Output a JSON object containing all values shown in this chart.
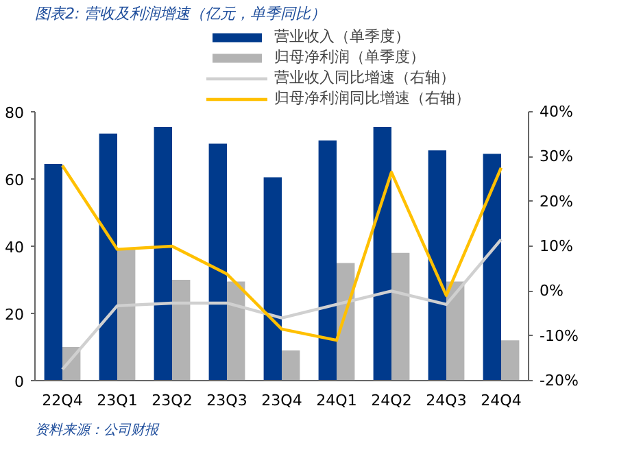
{
  "chart_data": {
    "type": "bar",
    "title": "图表2: 营收及利润增速（亿元，单季同比）",
    "categories": [
      "22Q4",
      "23Q1",
      "23Q2",
      "23Q3",
      "23Q4",
      "24Q1",
      "24Q2",
      "24Q3",
      "24Q4"
    ],
    "series": [
      {
        "name": "营业收入（单季度）",
        "color": "#003a8c",
        "values": [
          64.5,
          73.5,
          75.5,
          70.5,
          60.5,
          71.5,
          75.5,
          68.5,
          67.5
        ]
      },
      {
        "name": "归母净利润（单季度）",
        "color": "#b3b3b3",
        "values": [
          10,
          39,
          30,
          29.5,
          9,
          35,
          38,
          29.5,
          12
        ]
      },
      {
        "name": "营业收入同比增速（右轴）",
        "type": "line",
        "axis": "y2",
        "color": "#d0d0d0",
        "values": [
          -17.5,
          -3.3,
          -2.7,
          -2.7,
          -6,
          -3,
          0,
          -3,
          11.5
        ]
      },
      {
        "name": "归母净利润同比增速（右轴）",
        "type": "line",
        "axis": "y2",
        "color": "#ffc000",
        "values": [
          28,
          9.3,
          10,
          3.8,
          -8.5,
          -11,
          26.5,
          -1,
          27.5
        ]
      }
    ],
    "ylim": [
      0,
      80
    ],
    "yticks": [
      0,
      20,
      40,
      60,
      80
    ],
    "y2lim": [
      -20,
      40
    ],
    "y2ticks": [
      {
        "value": -20,
        "label": "-20%"
      },
      {
        "value": -10,
        "label": "-10%"
      },
      {
        "value": 0,
        "label": "0%"
      },
      {
        "value": 10,
        "label": "10%"
      },
      {
        "value": 20,
        "label": "20%"
      },
      {
        "value": 30,
        "label": "30%"
      },
      {
        "value": 40,
        "label": "40%"
      }
    ],
    "legend": "top right",
    "grid": false,
    "annotations": [
      "资料来源：公司财报"
    ]
  }
}
